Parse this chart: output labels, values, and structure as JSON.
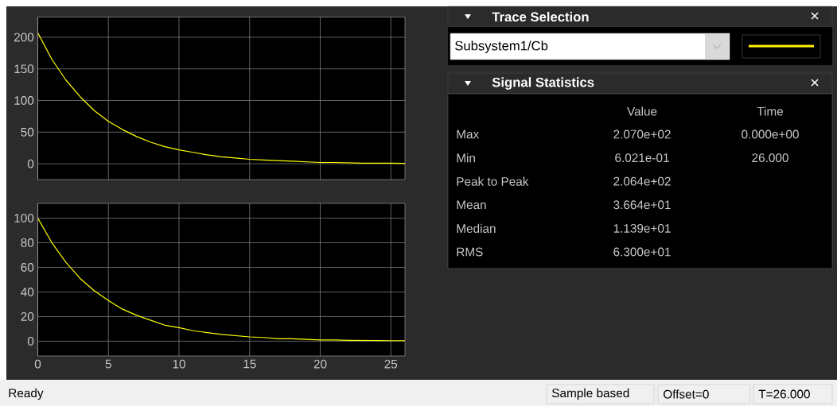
{
  "chart_data": [
    {
      "type": "line",
      "x": [
        0,
        1,
        2,
        3,
        4,
        5,
        6,
        7,
        8,
        9,
        10,
        11,
        12,
        13,
        14,
        15,
        16,
        17,
        18,
        19,
        20,
        21,
        22,
        23,
        24,
        25,
        26
      ],
      "series": [
        {
          "color": "#ffff00",
          "values": [
            207,
            165,
            132,
            106,
            84,
            67,
            54,
            43,
            34,
            27,
            22,
            18,
            14,
            11,
            9,
            7,
            6,
            5,
            4,
            3,
            2,
            2,
            1.5,
            1,
            1,
            1,
            0.6
          ]
        }
      ],
      "xlim": [
        0,
        26
      ],
      "ylim": [
        -25,
        232
      ],
      "xticks": [
        0,
        5,
        10,
        15,
        20,
        25
      ],
      "yticks": [
        0,
        50,
        100,
        150,
        200
      ],
      "grid": true,
      "tick_labels": "y"
    },
    {
      "type": "line",
      "x": [
        0,
        1,
        2,
        3,
        4,
        5,
        6,
        7,
        8,
        9,
        10,
        11,
        12,
        13,
        14,
        15,
        16,
        17,
        18,
        19,
        20,
        21,
        22,
        23,
        24,
        25,
        26
      ],
      "series": [
        {
          "color": "#ffff00",
          "values": [
            100,
            80,
            64,
            51,
            41,
            33,
            26,
            21,
            17,
            13,
            11,
            8.5,
            7,
            5.5,
            4.5,
            3.5,
            3,
            2,
            2,
            1.5,
            1,
            1,
            0.7,
            0.6,
            0.5,
            0.4,
            0.3
          ]
        }
      ],
      "xlim": [
        0,
        26
      ],
      "ylim": [
        -12,
        112
      ],
      "xticks": [
        0,
        5,
        10,
        15,
        20,
        25
      ],
      "yticks": [
        0,
        20,
        40,
        60,
        80,
        100
      ],
      "grid": true,
      "annotations": [
        "Ready",
        "Sample based",
        "Offset=0",
        "T=26.000"
      ]
    },
    {
      "type": "other",
      "title": "Trace Selection",
      "annotations": [
        "Subsystem1/Cb"
      ]
    },
    {
      "type": "other",
      "title": "Signal Statistics",
      "categories": [
        "Max",
        "Min",
        "Peak to Peak",
        "Mean",
        "Median",
        "RMS"
      ],
      "annotations": [
        "Value",
        "Time",
        "2.070e+02",
        "0.000e+00",
        "6.021e-01",
        "26.000",
        "2.064e+02",
        "3.664e+01",
        "1.139e+01",
        "6.300e+01"
      ]
    }
  ]
}
